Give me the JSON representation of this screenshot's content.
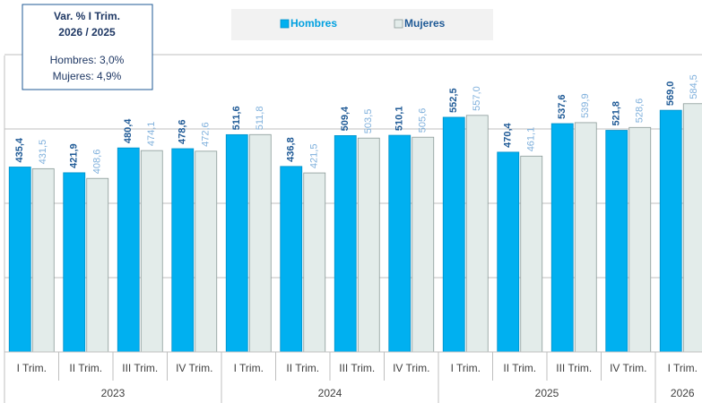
{
  "chart_data": {
    "type": "bar",
    "categories": [
      "I Trim.",
      "II Trim.",
      "III Trim.",
      "IV Trim.",
      "I Trim.",
      "II Trim.",
      "III Trim.",
      "IV Trim.",
      "I Trim.",
      "II Trim.",
      "III Trim.",
      "IV Trim.",
      "I Trim."
    ],
    "groups": [
      {
        "label": "2023",
        "span": 4
      },
      {
        "label": "2024",
        "span": 4
      },
      {
        "label": "2025",
        "span": 4
      },
      {
        "label": "2026",
        "span": 1
      }
    ],
    "series": [
      {
        "name": "Hombres",
        "color": "#00b0f0",
        "label_color": "#1f5a96",
        "values": [
          435.4,
          421.9,
          480.4,
          478.6,
          511.6,
          436.8,
          509.4,
          510.1,
          552.5,
          470.4,
          537.6,
          521.8,
          569.0
        ],
        "value_labels": [
          "435,4",
          "421,9",
          "480,4",
          "478,6",
          "511,6",
          "436,8",
          "509,4",
          "510,1",
          "552,5",
          "470,4",
          "537,6",
          "521,8",
          "569,0"
        ]
      },
      {
        "name": "Mujeres",
        "color": "#e3ecea",
        "label_color": "#7fb0dc",
        "values": [
          431.5,
          408.6,
          474.1,
          472.6,
          511.8,
          421.5,
          503.5,
          505.6,
          557.0,
          461.1,
          539.9,
          528.6,
          584.5
        ],
        "value_labels": [
          "431,5",
          "408,6",
          "474,1",
          "472,6",
          "511,8",
          "421,5",
          "503,5",
          "505,6",
          "557,0",
          "461,1",
          "539,9",
          "528,6",
          "584,5"
        ]
      }
    ],
    "ylim": [
      0,
      700
    ],
    "yticks": [
      0,
      175,
      350,
      525,
      700
    ],
    "grid": true,
    "annotation": {
      "title": [
        "Var. % I Trim.",
        "2026  / 2025"
      ],
      "lines": [
        "Hombres: 3,0%",
        "Mujeres: 4,9%"
      ]
    }
  }
}
